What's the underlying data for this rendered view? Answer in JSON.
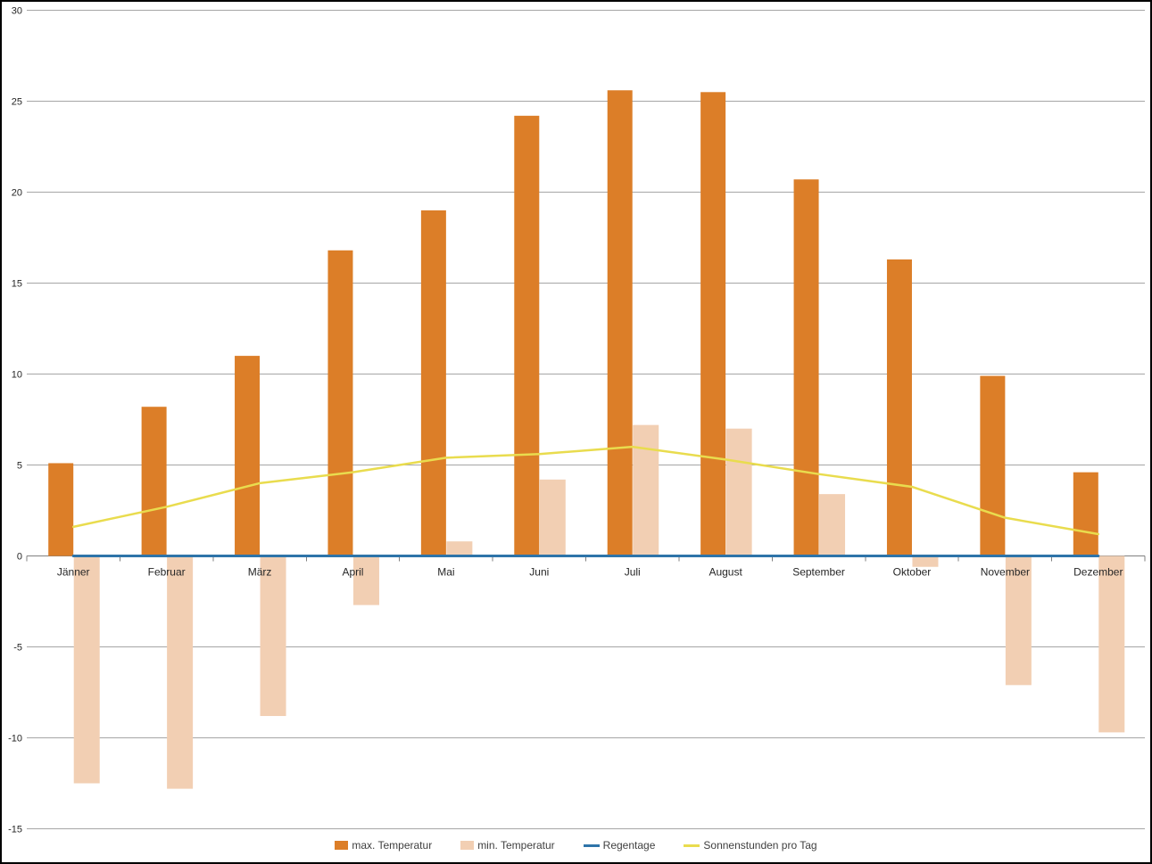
{
  "page": {
    "background": "#ffffff",
    "border_color": "#000000"
  },
  "chart_data": {
    "type": "bar",
    "subtype": "clustered-columns-with-lines",
    "title": "",
    "xlabel": "",
    "ylabel": "",
    "categories": [
      "Jänner",
      "Februar",
      "März",
      "April",
      "Mai",
      "Juni",
      "Juli",
      "August",
      "September",
      "Oktober",
      "November",
      "Dezember"
    ],
    "series": [
      {
        "name": "max. Temperatur",
        "kind": "bar",
        "color": "#dc7e28",
        "values": [
          5.1,
          8.2,
          11.0,
          16.8,
          19.0,
          24.2,
          25.6,
          25.5,
          20.7,
          16.3,
          9.9,
          4.6
        ]
      },
      {
        "name": "min. Temperatur",
        "kind": "bar",
        "color": "#f2cfb3",
        "values": [
          -12.5,
          -12.8,
          -8.8,
          -2.7,
          0.8,
          4.2,
          7.2,
          7.0,
          3.4,
          -0.6,
          -7.1,
          -9.7
        ]
      },
      {
        "name": "Regentage",
        "kind": "line",
        "color": "#2e74a9",
        "values": [
          0,
          0,
          0,
          0,
          0,
          0,
          0,
          0,
          0,
          0,
          0,
          0
        ]
      },
      {
        "name": "Sonnenstunden pro Tag",
        "kind": "line",
        "color": "#e9dc4e",
        "values": [
          1.6,
          2.7,
          4.0,
          4.6,
          5.4,
          5.6,
          6.0,
          5.3,
          4.5,
          3.8,
          2.1,
          1.2
        ]
      }
    ],
    "ylim": [
      -15,
      30
    ],
    "ytick_step": 5,
    "ytick_labels": [
      "30",
      "25",
      "20",
      "15",
      "10",
      "5",
      "0",
      "-5",
      "-10",
      "-15"
    ],
    "grid": true,
    "gridline_color": "#a6a6a6",
    "axis_color": "#808080",
    "tick_label_color": "#262626",
    "legend_position": "bottom",
    "legend_text_color": "#3f3f3f"
  }
}
